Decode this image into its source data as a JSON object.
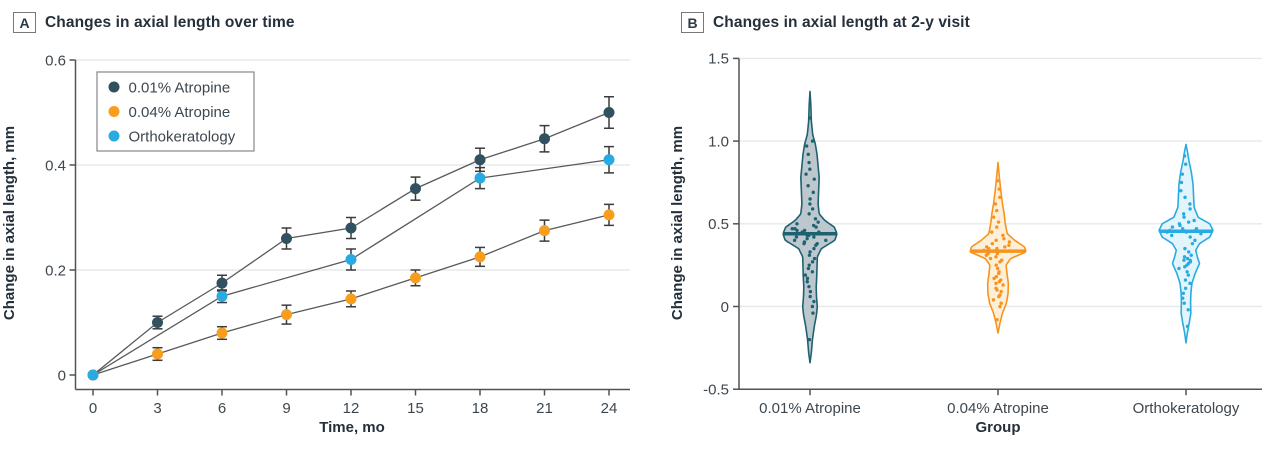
{
  "panels": {
    "a_label": "A",
    "b_label": "B"
  },
  "style": {
    "background": "#ffffff",
    "text_color": "#3D474F",
    "title_color": "#25303B",
    "axis_color": "#505254",
    "grid_color": "#E7E8E9",
    "connector_color": "#58595B",
    "error_bar_color": "#3A3B3C",
    "legend_border_color": "#85878A"
  },
  "chart_data": [
    {
      "panel": "A",
      "type": "line",
      "title": "Changes in axial length over time",
      "xlabel": "Time, mo",
      "ylabel": "Change in axial length, mm",
      "xlim": [
        0,
        24
      ],
      "ylim": [
        0,
        0.6
      ],
      "xticks": [
        0,
        3,
        6,
        9,
        12,
        15,
        18,
        21,
        24
      ],
      "yticks": [
        0,
        0.2,
        0.4,
        0.6
      ],
      "ytick_labels": [
        "0",
        "0.2",
        "0.4",
        "0.6"
      ],
      "grid": true,
      "legend_position": "top-left",
      "series": [
        {
          "name": "0.01% Atropine",
          "color": "#31515E",
          "x": [
            0,
            3,
            6,
            9,
            12,
            15,
            18,
            21,
            24
          ],
          "y": [
            0,
            0.1,
            0.175,
            0.26,
            0.28,
            0.355,
            0.41,
            0.45,
            0.5
          ],
          "err": [
            0,
            0.012,
            0.015,
            0.02,
            0.02,
            0.022,
            0.022,
            0.025,
            0.03
          ]
        },
        {
          "name": "0.04% Atropine",
          "color": "#F99D1C",
          "x": [
            0,
            3,
            6,
            9,
            12,
            15,
            18,
            21,
            24
          ],
          "y": [
            0,
            0.04,
            0.08,
            0.115,
            0.145,
            0.185,
            0.225,
            0.275,
            0.305
          ],
          "err": [
            0,
            0.012,
            0.012,
            0.018,
            0.015,
            0.015,
            0.018,
            0.02,
            0.02
          ]
        },
        {
          "name": "Orthokeratology",
          "color": "#29ABE2",
          "x": [
            0,
            6,
            12,
            18,
            24
          ],
          "y": [
            0,
            0.15,
            0.22,
            0.375,
            0.41
          ],
          "err": [
            0,
            0.012,
            0.02,
            0.02,
            0.025
          ]
        }
      ]
    },
    {
      "panel": "B",
      "type": "violin",
      "title": "Changes in axial length at 2-y visit",
      "xlabel": "Group",
      "ylabel": "Change in axial length, mm",
      "ylim": [
        -0.5,
        1.5
      ],
      "yticks": [
        -0.5,
        0,
        0.5,
        1.0,
        1.5
      ],
      "ytick_labels": [
        "-0.5",
        "0",
        "0.5",
        "1.0",
        "1.5"
      ],
      "categories": [
        "0.01% Atropine",
        "0.04% Atropine",
        "Orthokeratology"
      ],
      "groups": [
        {
          "name": "0.01% Atropine",
          "color": "#1E6171",
          "fill": "#BCC8CE",
          "median": 0.44,
          "min": -0.34,
          "max": 1.3,
          "profile": [
            [
              -0.34,
              0
            ],
            [
              -0.28,
              0.05
            ],
            [
              -0.2,
              0.09
            ],
            [
              -0.12,
              0.16
            ],
            [
              -0.05,
              0.24
            ],
            [
              0.0,
              0.27
            ],
            [
              0.06,
              0.24
            ],
            [
              0.12,
              0.23
            ],
            [
              0.18,
              0.25
            ],
            [
              0.24,
              0.26
            ],
            [
              0.3,
              0.27
            ],
            [
              0.35,
              0.42
            ],
            [
              0.4,
              0.92
            ],
            [
              0.44,
              1.0
            ],
            [
              0.48,
              0.9
            ],
            [
              0.52,
              0.55
            ],
            [
              0.56,
              0.34
            ],
            [
              0.62,
              0.3
            ],
            [
              0.7,
              0.32
            ],
            [
              0.78,
              0.34
            ],
            [
              0.85,
              0.3
            ],
            [
              0.92,
              0.26
            ],
            [
              0.98,
              0.2
            ],
            [
              1.04,
              0.1
            ],
            [
              1.12,
              0.05
            ],
            [
              1.22,
              0.03
            ],
            [
              1.3,
              0
            ]
          ],
          "points": [
            -0.2,
            -0.04,
            0.0,
            0.03,
            0.06,
            0.09,
            0.12,
            0.15,
            0.17,
            0.19,
            0.21,
            0.23,
            0.25,
            0.27,
            0.29,
            0.31,
            0.33,
            0.35,
            0.37,
            0.38,
            0.38,
            0.39,
            0.4,
            0.4,
            0.41,
            0.42,
            0.42,
            0.43,
            0.43,
            0.44,
            0.44,
            0.45,
            0.45,
            0.46,
            0.46,
            0.47,
            0.47,
            0.48,
            0.49,
            0.5,
            0.51,
            0.53,
            0.56,
            0.59,
            0.62,
            0.65,
            0.69,
            0.73,
            0.77,
            0.8,
            0.83,
            0.87,
            0.92,
            0.97,
            1.0,
            1.14
          ]
        },
        {
          "name": "0.04% Atropine",
          "color": "#F7941E",
          "fill": "#FDEFD8",
          "median": 0.335,
          "min": -0.16,
          "max": 0.87,
          "profile": [
            [
              -0.16,
              0
            ],
            [
              -0.1,
              0.07
            ],
            [
              -0.04,
              0.16
            ],
            [
              0.02,
              0.3
            ],
            [
              0.08,
              0.36
            ],
            [
              0.14,
              0.37
            ],
            [
              0.2,
              0.32
            ],
            [
              0.25,
              0.29
            ],
            [
              0.29,
              0.45
            ],
            [
              0.33,
              1.0
            ],
            [
              0.36,
              0.95
            ],
            [
              0.4,
              0.6
            ],
            [
              0.44,
              0.33
            ],
            [
              0.5,
              0.26
            ],
            [
              0.56,
              0.22
            ],
            [
              0.62,
              0.16
            ],
            [
              0.7,
              0.1
            ],
            [
              0.78,
              0.05
            ],
            [
              0.87,
              0
            ]
          ],
          "points": [
            -0.08,
            0.0,
            0.02,
            0.04,
            0.06,
            0.07,
            0.09,
            0.1,
            0.11,
            0.13,
            0.14,
            0.15,
            0.16,
            0.17,
            0.18,
            0.2,
            0.21,
            0.23,
            0.25,
            0.27,
            0.28,
            0.29,
            0.3,
            0.31,
            0.32,
            0.32,
            0.33,
            0.33,
            0.34,
            0.34,
            0.35,
            0.35,
            0.36,
            0.36,
            0.37,
            0.38,
            0.39,
            0.4,
            0.41,
            0.43,
            0.45,
            0.48,
            0.51,
            0.54,
            0.58,
            0.62,
            0.66,
            0.71,
            0.76
          ]
        },
        {
          "name": "Orthokeratology",
          "color": "#29ABE2",
          "fill": "#E2F4FC",
          "median": 0.455,
          "min": -0.22,
          "max": 0.98,
          "profile": [
            [
              -0.22,
              0
            ],
            [
              -0.16,
              0.05
            ],
            [
              -0.1,
              0.12
            ],
            [
              -0.04,
              0.18
            ],
            [
              0.02,
              0.17
            ],
            [
              0.08,
              0.18
            ],
            [
              0.14,
              0.22
            ],
            [
              0.2,
              0.34
            ],
            [
              0.26,
              0.5
            ],
            [
              0.3,
              0.42
            ],
            [
              0.34,
              0.36
            ],
            [
              0.38,
              0.5
            ],
            [
              0.42,
              0.88
            ],
            [
              0.46,
              1.0
            ],
            [
              0.5,
              0.88
            ],
            [
              0.54,
              0.45
            ],
            [
              0.6,
              0.3
            ],
            [
              0.67,
              0.28
            ],
            [
              0.74,
              0.26
            ],
            [
              0.81,
              0.2
            ],
            [
              0.88,
              0.11
            ],
            [
              0.94,
              0.05
            ],
            [
              0.98,
              0
            ]
          ],
          "points": [
            -0.12,
            -0.02,
            0.02,
            0.05,
            0.08,
            0.11,
            0.14,
            0.16,
            0.19,
            0.21,
            0.23,
            0.24,
            0.25,
            0.26,
            0.27,
            0.28,
            0.28,
            0.29,
            0.3,
            0.31,
            0.33,
            0.35,
            0.38,
            0.4,
            0.42,
            0.43,
            0.44,
            0.45,
            0.45,
            0.46,
            0.46,
            0.47,
            0.47,
            0.48,
            0.49,
            0.5,
            0.51,
            0.52,
            0.54,
            0.56,
            0.59,
            0.62,
            0.66,
            0.7,
            0.75,
            0.8,
            0.86,
            0.91
          ]
        }
      ]
    }
  ]
}
